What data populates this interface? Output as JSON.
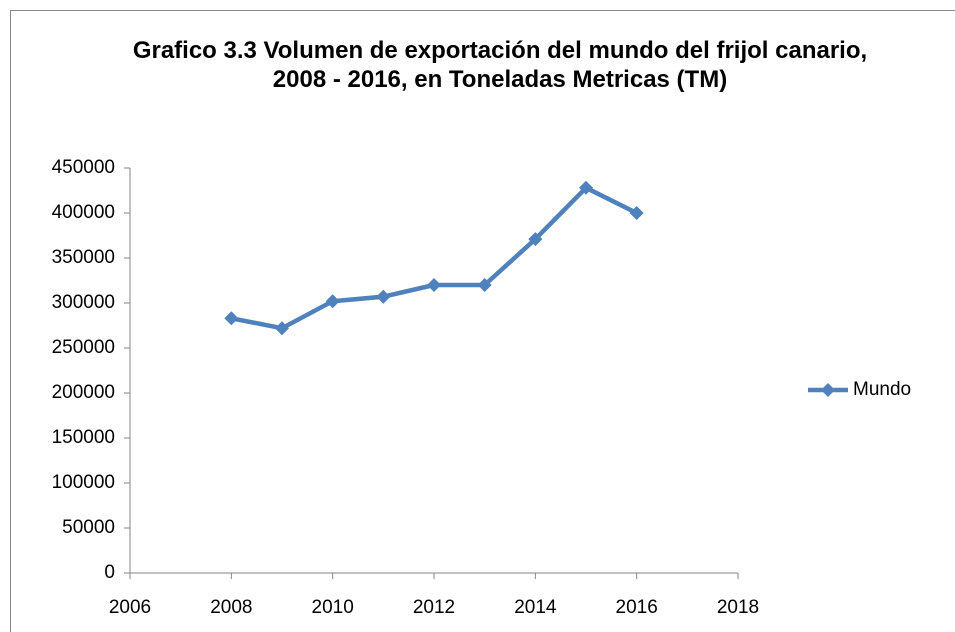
{
  "chart_data": {
    "type": "line",
    "title": "Grafico 3.3 Volumen de exportación del mundo del frijol canario, 2008 - 2016, en Toneladas Metricas (TM)",
    "x": [
      2008,
      2009,
      2010,
      2011,
      2012,
      2013,
      2014,
      2015,
      2016
    ],
    "series": [
      {
        "name": "Mundo",
        "color": "#4f81bd",
        "values": [
          283000,
          272000,
          302000,
          307000,
          320000,
          320000,
          371000,
          428000,
          400000
        ]
      }
    ],
    "xlim": [
      2006,
      2018
    ],
    "xticks": [
      2006,
      2008,
      2010,
      2012,
      2014,
      2016,
      2018
    ],
    "ylim": [
      0,
      450000
    ],
    "yticks": [
      0,
      50000,
      100000,
      150000,
      200000,
      250000,
      300000,
      350000,
      400000,
      450000
    ],
    "grid": false,
    "legend": "right"
  }
}
